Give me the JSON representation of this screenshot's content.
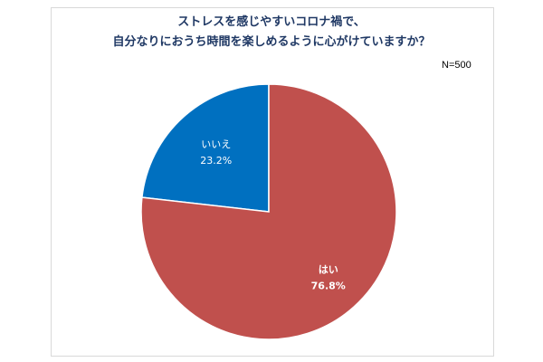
{
  "chart_data": {
    "type": "pie",
    "title_lines": [
      "ストレスを感じやすいコロナ禍で、",
      "自分なりにおうち時間を楽しめるように心がけていますか？"
    ],
    "sample_size": "N=500",
    "slices": [
      {
        "label": "いいえ",
        "value": 23.2,
        "value_label": "23.2%",
        "color": "#0070c0"
      },
      {
        "label": "はい",
        "value": 76.8,
        "value_label": "76.8%",
        "color": "#c0504d"
      }
    ],
    "start": "12 o'clock",
    "direction": "counterclockwise",
    "legend": "none"
  }
}
